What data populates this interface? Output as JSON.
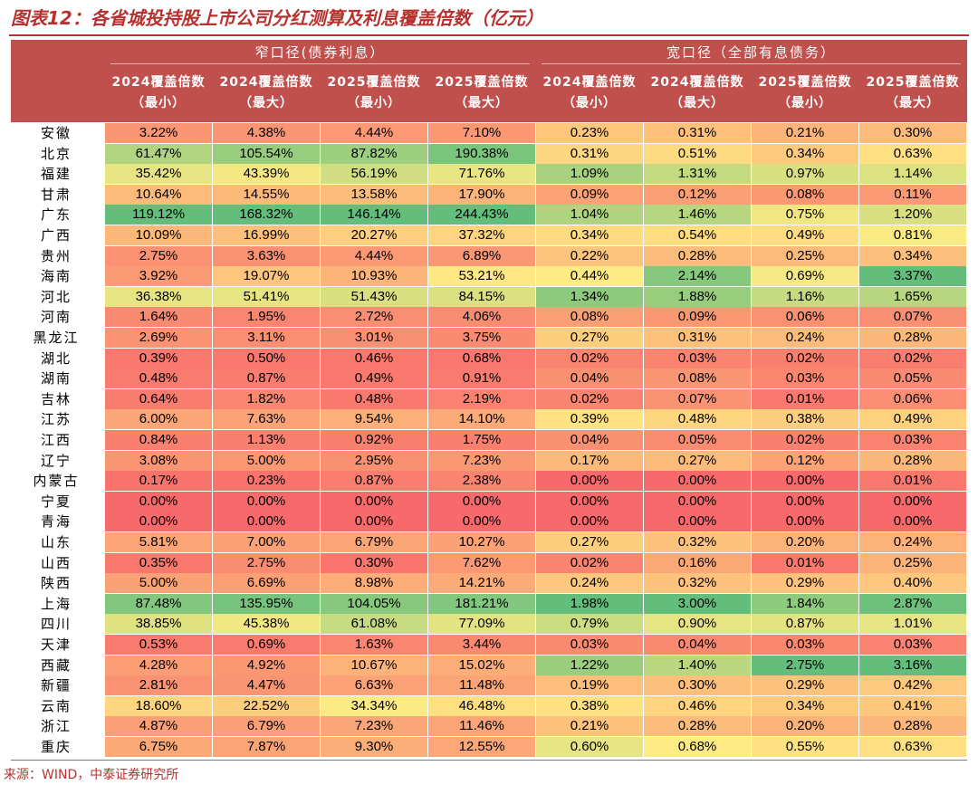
{
  "title": "图表12：各省城投持股上市公司分红测算及利息覆盖倍数（亿元）",
  "source": "来源：WIND，中泰证券研究所",
  "colors": {
    "accent": "#b8312f",
    "header_bg": "#c0504d",
    "low": "#f8696b",
    "mid": "#ffeb84",
    "high": "#63be7b"
  },
  "chart_data": {
    "type": "table",
    "title": "图表12：各省城投持股上市公司分红测算及利息覆盖倍数（亿元）",
    "column_groups": [
      {
        "label": "窄口径(债券利息）",
        "span": 4
      },
      {
        "label": "宽口径（全部有息债务）",
        "span": 4
      }
    ],
    "columns": [
      [
        "2024覆盖倍数",
        "（最小）"
      ],
      [
        "2024覆盖倍数",
        "（最大）"
      ],
      [
        "2025覆盖倍数",
        "（最小）"
      ],
      [
        "2025覆盖倍数",
        "（最大）"
      ],
      [
        "2024覆盖倍数",
        "（最小）"
      ],
      [
        "2024覆盖倍数",
        "（最大）"
      ],
      [
        "2025覆盖倍数",
        "（最小）"
      ],
      [
        "2025覆盖倍数",
        "（最大）"
      ]
    ],
    "rows": [
      {
        "label": "安徽",
        "values": [
          "3.22%",
          "4.38%",
          "4.44%",
          "7.10%",
          "0.23%",
          "0.31%",
          "0.21%",
          "0.30%"
        ]
      },
      {
        "label": "北京",
        "values": [
          "61.47%",
          "105.54%",
          "87.82%",
          "190.38%",
          "0.31%",
          "0.51%",
          "0.34%",
          "0.63%"
        ]
      },
      {
        "label": "福建",
        "values": [
          "35.42%",
          "43.39%",
          "56.19%",
          "71.76%",
          "1.09%",
          "1.31%",
          "0.97%",
          "1.14%"
        ]
      },
      {
        "label": "甘肃",
        "values": [
          "10.64%",
          "14.55%",
          "13.58%",
          "17.90%",
          "0.09%",
          "0.12%",
          "0.08%",
          "0.11%"
        ]
      },
      {
        "label": "广东",
        "values": [
          "119.12%",
          "168.32%",
          "146.14%",
          "244.43%",
          "1.04%",
          "1.46%",
          "0.75%",
          "1.20%"
        ]
      },
      {
        "label": "广西",
        "values": [
          "10.09%",
          "16.99%",
          "20.27%",
          "37.32%",
          "0.34%",
          "0.54%",
          "0.49%",
          "0.81%"
        ]
      },
      {
        "label": "贵州",
        "values": [
          "2.75%",
          "3.63%",
          "4.44%",
          "6.89%",
          "0.22%",
          "0.28%",
          "0.25%",
          "0.34%"
        ]
      },
      {
        "label": "海南",
        "values": [
          "3.92%",
          "19.07%",
          "10.93%",
          "53.21%",
          "0.44%",
          "2.14%",
          "0.69%",
          "3.37%"
        ]
      },
      {
        "label": "河北",
        "values": [
          "36.38%",
          "51.41%",
          "51.43%",
          "84.15%",
          "1.34%",
          "1.88%",
          "1.16%",
          "1.65%"
        ]
      },
      {
        "label": "河南",
        "values": [
          "1.64%",
          "1.95%",
          "2.72%",
          "4.06%",
          "0.08%",
          "0.09%",
          "0.06%",
          "0.07%"
        ]
      },
      {
        "label": "黑龙江",
        "values": [
          "2.69%",
          "3.11%",
          "3.01%",
          "3.75%",
          "0.27%",
          "0.31%",
          "0.24%",
          "0.28%"
        ]
      },
      {
        "label": "湖北",
        "values": [
          "0.39%",
          "0.50%",
          "0.46%",
          "0.68%",
          "0.02%",
          "0.03%",
          "0.02%",
          "0.02%"
        ]
      },
      {
        "label": "湖南",
        "values": [
          "0.48%",
          "0.87%",
          "0.49%",
          "0.91%",
          "0.04%",
          "0.08%",
          "0.03%",
          "0.05%"
        ]
      },
      {
        "label": "吉林",
        "values": [
          "0.64%",
          "1.82%",
          "0.48%",
          "2.19%",
          "0.02%",
          "0.07%",
          "0.01%",
          "0.06%"
        ]
      },
      {
        "label": "江苏",
        "values": [
          "6.00%",
          "7.63%",
          "9.54%",
          "14.10%",
          "0.39%",
          "0.48%",
          "0.38%",
          "0.49%"
        ]
      },
      {
        "label": "江西",
        "values": [
          "0.84%",
          "1.13%",
          "0.92%",
          "1.75%",
          "0.04%",
          "0.05%",
          "0.02%",
          "0.03%"
        ]
      },
      {
        "label": "辽宁",
        "values": [
          "3.08%",
          "5.00%",
          "2.95%",
          "7.23%",
          "0.17%",
          "0.27%",
          "0.12%",
          "0.28%"
        ]
      },
      {
        "label": "内蒙古",
        "values": [
          "0.17%",
          "0.23%",
          "0.87%",
          "2.38%",
          "0.00%",
          "0.00%",
          "0.00%",
          "0.01%"
        ]
      },
      {
        "label": "宁夏",
        "values": [
          "0.00%",
          "0.00%",
          "0.00%",
          "0.00%",
          "0.00%",
          "0.00%",
          "0.00%",
          "0.00%"
        ]
      },
      {
        "label": "青海",
        "values": [
          "0.00%",
          "0.00%",
          "0.00%",
          "0.00%",
          "0.00%",
          "0.00%",
          "0.00%",
          "0.00%"
        ]
      },
      {
        "label": "山东",
        "values": [
          "5.81%",
          "7.00%",
          "6.79%",
          "10.27%",
          "0.27%",
          "0.32%",
          "0.20%",
          "0.24%"
        ]
      },
      {
        "label": "山西",
        "values": [
          "0.35%",
          "2.75%",
          "0.30%",
          "7.62%",
          "0.02%",
          "0.16%",
          "0.01%",
          "0.25%"
        ]
      },
      {
        "label": "陕西",
        "values": [
          "5.00%",
          "6.69%",
          "8.98%",
          "14.21%",
          "0.24%",
          "0.32%",
          "0.29%",
          "0.40%"
        ]
      },
      {
        "label": "上海",
        "values": [
          "87.48%",
          "135.95%",
          "104.05%",
          "181.21%",
          "1.98%",
          "3.00%",
          "1.84%",
          "2.87%"
        ]
      },
      {
        "label": "四川",
        "values": [
          "38.85%",
          "45.38%",
          "61.08%",
          "77.09%",
          "0.79%",
          "0.90%",
          "0.87%",
          "1.01%"
        ]
      },
      {
        "label": "天津",
        "values": [
          "0.53%",
          "0.69%",
          "1.63%",
          "3.44%",
          "0.03%",
          "0.04%",
          "0.03%",
          "0.03%"
        ]
      },
      {
        "label": "西藏",
        "values": [
          "4.28%",
          "4.92%",
          "10.67%",
          "15.02%",
          "1.22%",
          "1.40%",
          "2.75%",
          "3.16%"
        ]
      },
      {
        "label": "新疆",
        "values": [
          "2.81%",
          "4.47%",
          "6.63%",
          "11.48%",
          "0.19%",
          "0.30%",
          "0.29%",
          "0.42%"
        ]
      },
      {
        "label": "云南",
        "values": [
          "18.60%",
          "22.52%",
          "34.34%",
          "46.48%",
          "0.38%",
          "0.46%",
          "0.34%",
          "0.41%"
        ]
      },
      {
        "label": "浙江",
        "values": [
          "4.87%",
          "6.79%",
          "7.23%",
          "11.46%",
          "0.21%",
          "0.28%",
          "0.20%",
          "0.28%"
        ]
      },
      {
        "label": "重庆",
        "values": [
          "6.75%",
          "7.87%",
          "9.30%",
          "12.55%",
          "0.60%",
          "0.68%",
          "0.55%",
          "0.63%"
        ]
      }
    ]
  }
}
